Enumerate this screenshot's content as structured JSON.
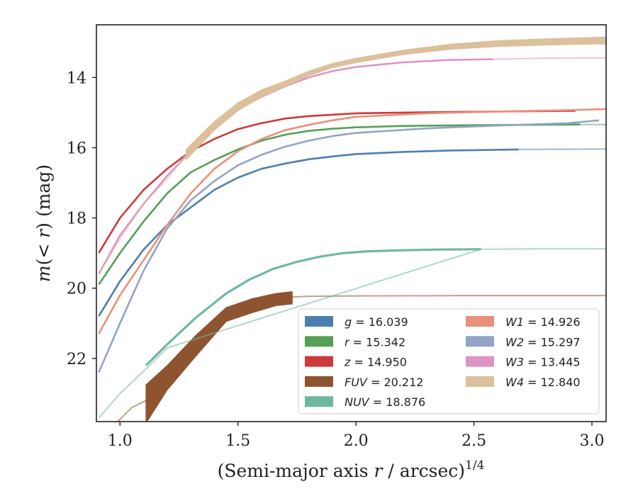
{
  "chart_data": {
    "type": "line",
    "xlabel_main": "(Semi-major axis ",
    "xlabel_r": "r",
    "xlabel_tail": " / arcsec)",
    "xlabel_sup": "1/4",
    "ylabel_main": "m(< r) (mag)",
    "ylabel_left": "m",
    "ylabel_mid": "(< ",
    "ylabel_r": "r",
    "ylabel_tail": ") (mag)",
    "xlim": [
      0.9,
      3.06
    ],
    "ylim": [
      23.8,
      12.5
    ],
    "y_inverted": true,
    "grid": false,
    "legend_position": "lower-right",
    "xticks": [
      1.0,
      1.5,
      2.0,
      2.5,
      3.0
    ],
    "xtick_labels": [
      "1.0",
      "1.5",
      "2.0",
      "2.5",
      "3.0"
    ],
    "yticks": [
      14,
      16,
      18,
      20,
      22
    ],
    "ytick_labels": [
      "14",
      "16",
      "18",
      "20",
      "22"
    ],
    "series": [
      {
        "name": "g = 16.039",
        "band": "g",
        "value": "16.039",
        "color": "#4c7fb0",
        "width": 2.6,
        "x": [
          0.91,
          1.0,
          1.1,
          1.2,
          1.3,
          1.4,
          1.5,
          1.6,
          1.7,
          1.8,
          1.9,
          2.0,
          2.2,
          2.4,
          2.69
        ],
        "y": [
          20.8,
          19.8,
          18.9,
          18.2,
          17.7,
          17.2,
          16.85,
          16.6,
          16.45,
          16.33,
          16.25,
          16.18,
          16.12,
          16.08,
          16.05
        ],
        "faint_x": [
          2.69,
          3.06
        ],
        "faint_y": [
          16.05,
          16.04
        ]
      },
      {
        "name": "r = 15.342",
        "band": "r",
        "value": "15.342",
        "color": "#55a055",
        "width": 2.6,
        "x": [
          0.91,
          1.0,
          1.1,
          1.2,
          1.3,
          1.4,
          1.5,
          1.6,
          1.7,
          1.8,
          1.9,
          2.0,
          2.2,
          2.5,
          2.95
        ],
        "y": [
          19.9,
          19.0,
          18.1,
          17.3,
          16.7,
          16.35,
          16.05,
          15.8,
          15.63,
          15.52,
          15.46,
          15.42,
          15.38,
          15.36,
          15.34
        ],
        "faint_x": [
          2.95,
          3.06
        ],
        "faint_y": [
          15.34,
          15.34
        ]
      },
      {
        "name": "z = 14.950",
        "band": "z",
        "value": "14.950",
        "color": "#cc3a3a",
        "width": 2.6,
        "x": [
          0.91,
          1.0,
          1.1,
          1.2,
          1.3,
          1.4,
          1.5,
          1.6,
          1.7,
          1.8,
          1.9,
          2.0,
          2.3,
          2.6,
          2.93
        ],
        "y": [
          19.0,
          18.0,
          17.2,
          16.6,
          16.1,
          15.75,
          15.47,
          15.3,
          15.17,
          15.1,
          15.06,
          15.02,
          14.99,
          14.97,
          14.95
        ],
        "faint_x": [],
        "faint_y": []
      },
      {
        "name": "FUV = 20.212",
        "band": "FUV",
        "value": "20.212",
        "color": "#8e5430",
        "band_fill": true,
        "x": [
          1.11,
          1.2,
          1.32,
          1.45,
          1.56,
          1.66,
          1.73
        ],
        "y_low": [
          23.85,
          22.9,
          21.95,
          20.95,
          20.7,
          20.5,
          20.45
        ],
        "y_high": [
          22.75,
          22.2,
          21.35,
          20.55,
          20.3,
          20.15,
          20.1
        ],
        "faint_x": [
          0.96,
          1.05,
          1.11,
          1.2,
          1.32,
          1.45,
          1.56,
          1.66,
          1.73,
          1.8,
          2.0,
          2.5,
          3.06
        ],
        "faint_y": [
          24.0,
          23.4,
          23.2,
          22.5,
          21.6,
          20.75,
          20.45,
          20.3,
          20.25,
          20.23,
          20.22,
          20.21,
          20.21
        ]
      },
      {
        "name": "NUV = 18.876",
        "band": "NUV",
        "value": "18.876",
        "color": "#6db89f",
        "width": 3.2,
        "x": [
          1.11,
          1.2,
          1.32,
          1.45,
          1.55,
          1.65,
          1.75,
          1.85,
          1.95,
          2.05,
          2.2,
          2.35,
          2.53
        ],
        "y": [
          22.2,
          21.6,
          20.85,
          20.15,
          19.75,
          19.45,
          19.25,
          19.1,
          19.0,
          18.95,
          18.92,
          18.9,
          18.89
        ],
        "faint_x": [
          0.91,
          1.0,
          1.11,
          1.2,
          2.53,
          2.8,
          3.06
        ],
        "faint_y": [
          23.7,
          23.0,
          22.3,
          21.7,
          18.89,
          18.88,
          18.88
        ]
      },
      {
        "name": "W1 = 14.926",
        "band": "W1",
        "value": "14.926",
        "color": "#e8917a",
        "width": 2.6,
        "x": [
          0.91,
          1.0,
          1.1,
          1.2,
          1.3,
          1.4,
          1.5,
          1.6,
          1.7,
          1.8,
          1.9,
          2.0,
          2.3,
          2.6,
          2.9,
          3.06
        ],
        "y": [
          21.3,
          20.2,
          19.2,
          18.2,
          17.3,
          16.6,
          16.1,
          15.75,
          15.5,
          15.35,
          15.22,
          15.12,
          15.02,
          14.97,
          14.93,
          14.9
        ],
        "faint_x": [],
        "faint_y": []
      },
      {
        "name": "W2 = 15.297",
        "band": "W2",
        "value": "15.297",
        "color": "#93a4c8",
        "width": 2.6,
        "x": [
          0.91,
          1.0,
          1.1,
          1.2,
          1.3,
          1.4,
          1.5,
          1.6,
          1.7,
          1.8,
          1.9,
          2.0,
          2.3,
          2.6,
          2.9,
          3.03
        ],
        "y": [
          22.4,
          21.0,
          19.5,
          18.3,
          17.5,
          16.95,
          16.5,
          16.2,
          15.97,
          15.8,
          15.67,
          15.58,
          15.45,
          15.37,
          15.3,
          15.22
        ],
        "faint_x": [],
        "faint_y": []
      },
      {
        "name": "W3 = 13.445",
        "band": "W3",
        "value": "13.445",
        "color": "#df93c5",
        "width": 2.6,
        "x": [
          0.91,
          1.0,
          1.1,
          1.2,
          1.3,
          1.4,
          1.5,
          1.6,
          1.7,
          1.8,
          1.9,
          2.0,
          2.2,
          2.4,
          2.58
        ],
        "y": [
          19.6,
          18.5,
          17.6,
          16.8,
          16.1,
          15.45,
          14.9,
          14.55,
          14.25,
          14.0,
          13.82,
          13.7,
          13.57,
          13.5,
          13.48
        ],
        "faint_x": [
          2.58,
          2.8,
          3.06
        ],
        "faint_y": [
          13.48,
          13.45,
          13.44
        ]
      },
      {
        "name": "W4 = 12.840",
        "band": "W4",
        "value": "12.840",
        "color": "#dcc09c",
        "band_fill": true,
        "x": [
          1.28,
          1.4,
          1.5,
          1.6,
          1.7,
          1.8,
          1.9,
          2.0,
          2.2,
          2.4,
          2.6,
          2.8,
          3.0,
          3.06
        ],
        "y_low": [
          16.35,
          15.5,
          14.95,
          14.55,
          14.25,
          13.95,
          13.72,
          13.58,
          13.35,
          13.2,
          13.12,
          13.08,
          13.05,
          13.05
        ],
        "y_high": [
          16.05,
          15.25,
          14.72,
          14.35,
          14.1,
          13.82,
          13.6,
          13.45,
          13.22,
          13.05,
          12.95,
          12.9,
          12.86,
          12.85
        ],
        "faint_x": [
          0.91,
          1.0,
          1.1,
          1.2,
          1.28
        ],
        "faint_y": [
          19.6,
          18.6,
          17.6,
          16.9,
          16.2
        ]
      }
    ]
  },
  "legend": {
    "left": [
      {
        "band": "g",
        "value": "16.039",
        "color": "#4c7fb0"
      },
      {
        "band": "r",
        "value": "15.342",
        "color": "#55a055"
      },
      {
        "band": "z",
        "value": "14.950",
        "color": "#cc3a3a"
      },
      {
        "band": "FUV",
        "value": "20.212",
        "color": "#8e5430"
      },
      {
        "band": "NUV",
        "value": "18.876",
        "color": "#6db89f"
      }
    ],
    "right": [
      {
        "band": "W1",
        "value": "14.926",
        "color": "#e8917a"
      },
      {
        "band": "W2",
        "value": "15.297",
        "color": "#93a4c8"
      },
      {
        "band": "W3",
        "value": "13.445",
        "color": "#df93c5"
      },
      {
        "band": "W4",
        "value": "12.840",
        "color": "#dcc09c"
      }
    ]
  }
}
